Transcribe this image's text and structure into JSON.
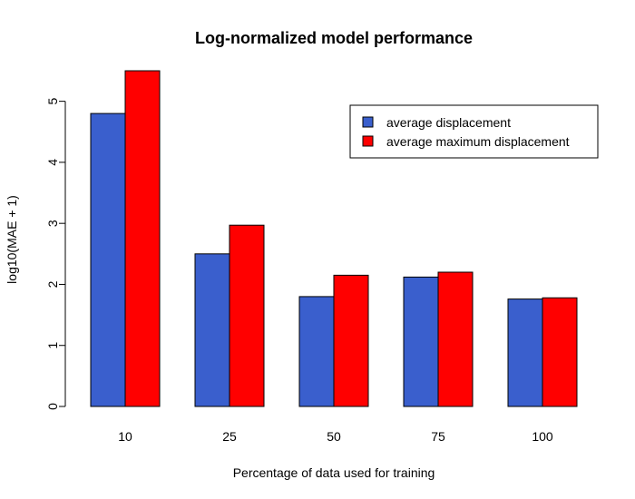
{
  "chart_data": {
    "type": "bar",
    "title": "Log-normalized model performance",
    "xlabel": "Percentage of data used for training",
    "ylabel": "log10(MAE + 1)",
    "categories": [
      "10",
      "25",
      "50",
      "75",
      "100"
    ],
    "series": [
      {
        "name": "average displacement",
        "color": "#3A5FCD",
        "values": [
          4.8,
          2.5,
          1.8,
          2.12,
          1.76
        ]
      },
      {
        "name": "average maximum displacement",
        "color": "#FF0000",
        "values": [
          5.5,
          2.97,
          2.15,
          2.2,
          1.78
        ]
      }
    ],
    "ylim": [
      0,
      5.5
    ],
    "yticks": [
      0,
      1,
      2,
      3,
      4,
      5
    ],
    "grid": false,
    "legend_position": "top-right"
  }
}
